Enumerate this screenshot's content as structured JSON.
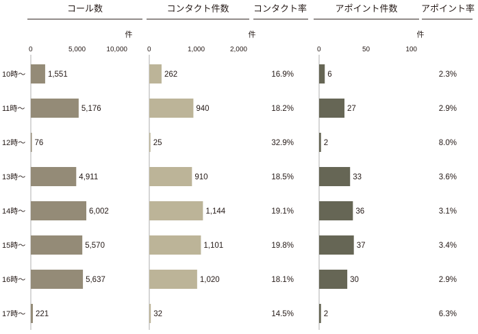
{
  "chart_data": {
    "type": "bar",
    "headers": {
      "calls": "コール数",
      "contacts": "コンタクト件数",
      "contact_rate": "コンタクト率",
      "appointments": "アポイント件数",
      "appointment_rate": "アポイント率"
    },
    "unit_label": "件",
    "categories": [
      "10時〜",
      "11時〜",
      "12時〜",
      "13時〜",
      "14時〜",
      "15時〜",
      "16時〜",
      "17時〜"
    ],
    "series": [
      {
        "name": "コール数",
        "values": [
          1551,
          5176,
          76,
          4911,
          6002,
          5570,
          5637,
          221
        ],
        "labels": [
          "1,551",
          "5,176",
          "76",
          "4,911",
          "6,002",
          "5,570",
          "5,637",
          "221"
        ],
        "xlim": [
          0,
          10000
        ],
        "ticks": [
          "0",
          "5,000",
          "10,000"
        ],
        "tick_values": [
          0,
          5000,
          10000
        ],
        "color": "#948b77"
      },
      {
        "name": "コンタクト件数",
        "values": [
          262,
          940,
          25,
          910,
          1144,
          1101,
          1020,
          32
        ],
        "labels": [
          "262",
          "940",
          "25",
          "910",
          "1,144",
          "1,101",
          "1,020",
          "32"
        ],
        "xlim": [
          0,
          2000
        ],
        "ticks": [
          "0",
          "1,000",
          "2,000"
        ],
        "tick_values": [
          0,
          1000,
          2000
        ],
        "color": "#bcb498"
      },
      {
        "name": "アポイント件数",
        "values": [
          6,
          27,
          2,
          33,
          36,
          37,
          30,
          2
        ],
        "labels": [
          "6",
          "27",
          "2",
          "33",
          "36",
          "37",
          "30",
          "2"
        ],
        "xlim": [
          0,
          100
        ],
        "ticks": [
          "0",
          "50",
          "100"
        ],
        "tick_values": [
          0,
          50,
          100
        ],
        "color": "#666655"
      }
    ],
    "contact_rate": [
      "16.9%",
      "18.2%",
      "32.9%",
      "18.5%",
      "19.1%",
      "19.8%",
      "18.1%",
      "14.5%"
    ],
    "appointment_rate": [
      "2.3%",
      "2.9%",
      "8.0%",
      "3.6%",
      "3.1%",
      "3.4%",
      "2.9%",
      "6.3%"
    ]
  }
}
